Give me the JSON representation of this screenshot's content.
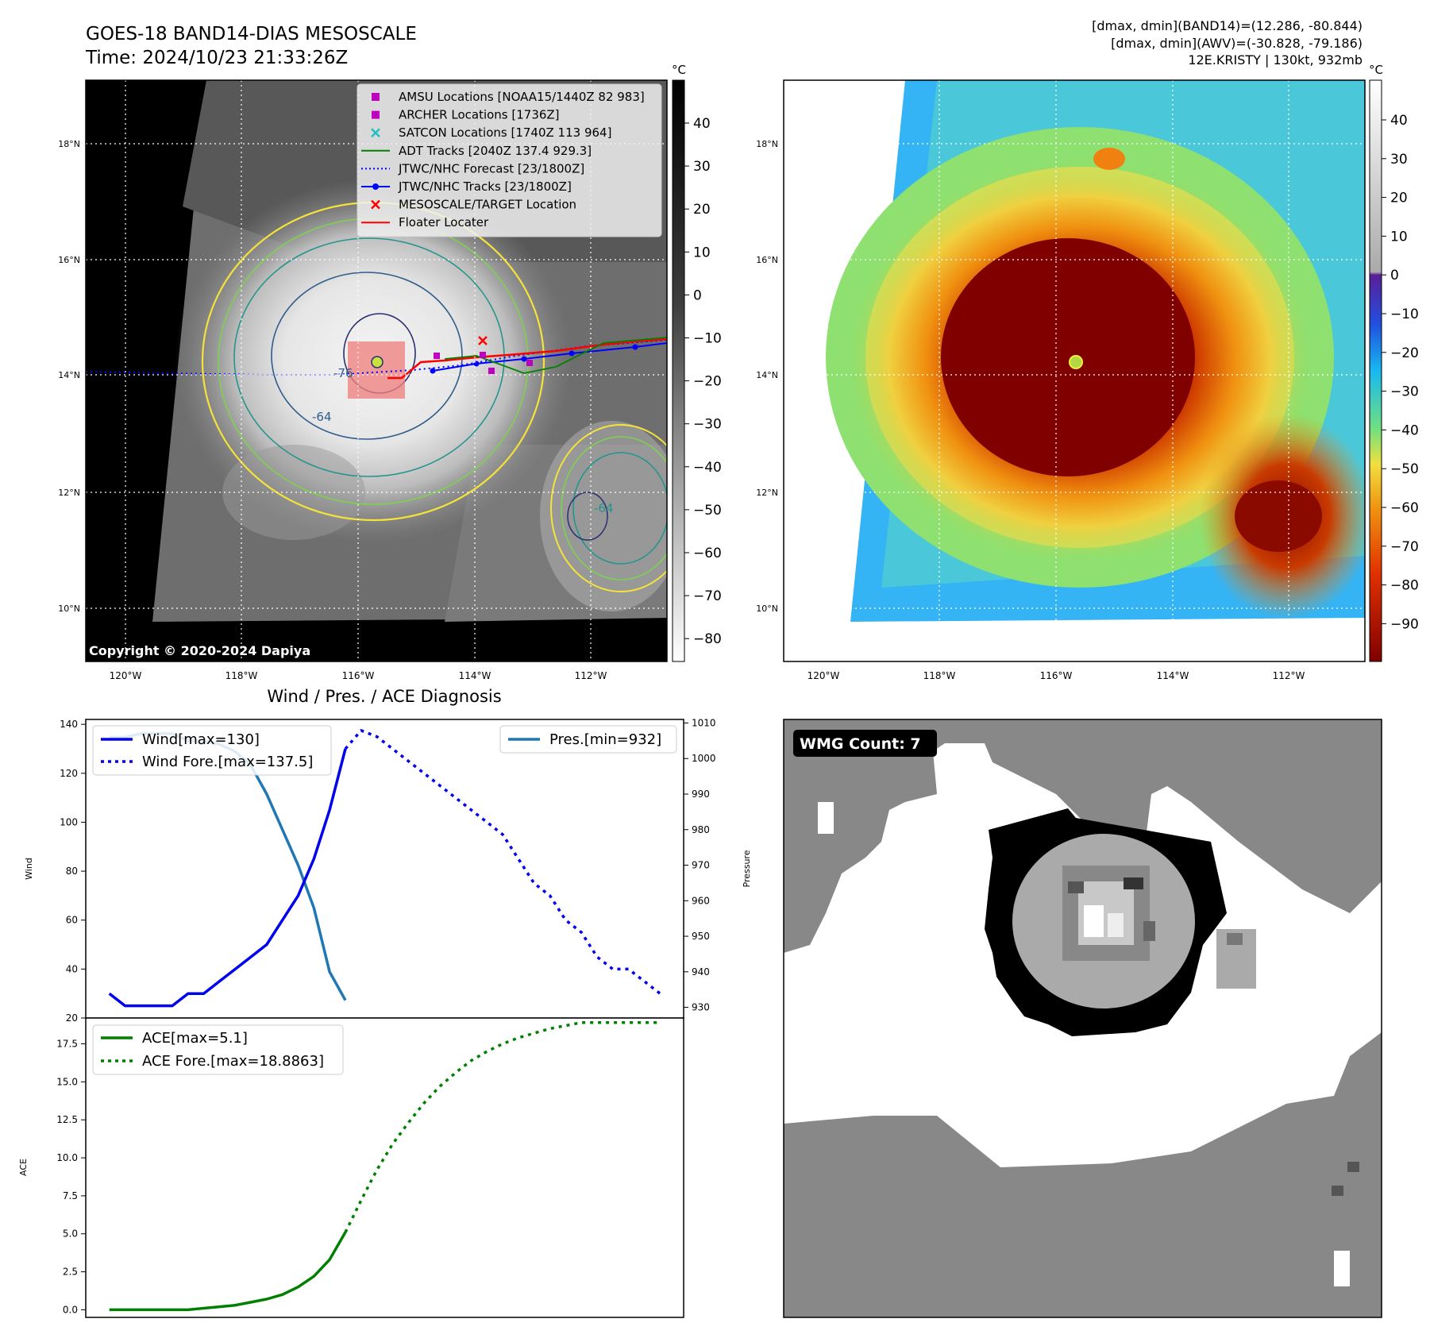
{
  "header": {
    "title_line1": "GOES-18 BAND14-DIAS MESOSCALE",
    "title_line2": "Time: 2024/10/23 21:33:26Z",
    "stats_line1": "[dmax, dmin](BAND14)=(12.286, -80.844)",
    "stats_line2": "[dmax, dmin](AWV)=(-30.828, -79.186)",
    "stats_line3": "12E.KRISTY | 130kt, 932mb"
  },
  "map_ir": {
    "lat_labels": [
      "18°N",
      "16°N",
      "14°N",
      "12°N",
      "10°N"
    ],
    "lon_labels": [
      "120°W",
      "118°W",
      "116°W",
      "114°W",
      "112°W"
    ],
    "copyright": "Copyright © 2020-2024 Dapiya",
    "contour_labels": [
      "-76",
      "-64",
      "-64"
    ],
    "legend": [
      {
        "label": "AMSU Locations [NOAA15/1440Z 82 983]",
        "color": "#c000c0",
        "marker": "square"
      },
      {
        "label": "ARCHER Locations [1736Z]",
        "color": "#c000c0",
        "marker": "square"
      },
      {
        "label": "SATCON Locations [1740Z 113 964]",
        "color": "#1fbfbf",
        "marker": "x"
      },
      {
        "label": "ADT Tracks [2040Z 137.4 929.3]",
        "color": "#008000",
        "marker": "line"
      },
      {
        "label": "JTWC/NHC Forecast [23/1800Z]",
        "color": "#0000ff",
        "marker": "dotted"
      },
      {
        "label": "JTWC/NHC Tracks [23/1800Z]",
        "color": "#0000ff",
        "marker": "line-dot"
      },
      {
        "label": "MESOSCALE/TARGET Location",
        "color": "#ff0000",
        "marker": "x"
      },
      {
        "label": "Floater Locater",
        "color": "#ff0000",
        "marker": "line"
      }
    ],
    "colorbar": {
      "unit": "°C",
      "ticks": [
        "40",
        "30",
        "20",
        "10",
        "0",
        "−10",
        "−20",
        "−30",
        "−40",
        "−50",
        "−60",
        "−70",
        "−80"
      ]
    }
  },
  "map_dias": {
    "lat_labels": [
      "18°N",
      "16°N",
      "14°N",
      "12°N",
      "10°N"
    ],
    "lon_labels": [
      "120°W",
      "118°W",
      "116°W",
      "114°W",
      "112°W"
    ],
    "colorbar": {
      "unit": "°C",
      "ticks": [
        "40",
        "30",
        "20",
        "10",
        "0",
        "−10",
        "−20",
        "−30",
        "−40",
        "−50",
        "−60",
        "−70",
        "−80",
        "−90"
      ]
    }
  },
  "wmg": {
    "badge": "WMG Count: 7"
  },
  "chart_data": [
    {
      "type": "line",
      "title": "Wind / Pres. / ACE Diagnosis",
      "ylabel": "Wind",
      "ylabel_right": "Pressure",
      "ylim": [
        20,
        142
      ],
      "ylim_right": [
        927,
        1011
      ],
      "y_ticks": [
        "140",
        "120",
        "100",
        "80",
        "60",
        "40",
        "20"
      ],
      "y_ticks_right": [
        "1010",
        "1000",
        "990",
        "980",
        "970",
        "960",
        "950",
        "940",
        "930"
      ],
      "series": [
        {
          "name": "Wind[max=130]",
          "color": "#0000ee",
          "style": "solid",
          "axis": "left",
          "x": [
            0,
            1,
            2,
            3,
            4,
            5,
            6,
            7,
            8,
            9,
            10,
            11,
            12,
            13,
            14,
            15
          ],
          "values": [
            30,
            25,
            25,
            25,
            25,
            30,
            30,
            35,
            40,
            45,
            50,
            60,
            70,
            85,
            105,
            130
          ]
        },
        {
          "name": "Wind Fore.[max=137.5]",
          "color": "#0000ee",
          "style": "dotted",
          "axis": "left",
          "x": [
            15,
            16,
            17,
            18,
            19,
            20,
            21,
            22,
            23,
            24,
            25,
            26,
            27,
            28,
            29,
            30,
            31,
            32,
            33,
            34,
            35
          ],
          "values": [
            130,
            137.5,
            135,
            130,
            125,
            120,
            115,
            110,
            105,
            100,
            95,
            85,
            75,
            70,
            60,
            55,
            45,
            40,
            40,
            35,
            30
          ]
        },
        {
          "name": "Pres.[min=932]",
          "color": "#1f77b4",
          "style": "solid",
          "axis": "right",
          "x": [
            0,
            1,
            2,
            3,
            4,
            5,
            6,
            7,
            8,
            9,
            10,
            11,
            12,
            13,
            14,
            15
          ],
          "values": [
            1006,
            1006,
            1007,
            1007,
            1007,
            1005,
            1005,
            1004,
            1002,
            998,
            990,
            980,
            970,
            958,
            940,
            932
          ]
        }
      ]
    },
    {
      "type": "line",
      "ylabel": "ACE",
      "ylim": [
        -0.5,
        19.2
      ],
      "y_ticks": [
        "17.5",
        "15.0",
        "12.5",
        "10.0",
        "7.5",
        "5.0",
        "2.5",
        "0.0"
      ],
      "series": [
        {
          "name": "ACE[max=5.1]",
          "color": "#008000",
          "style": "solid",
          "x": [
            0,
            1,
            2,
            3,
            4,
            5,
            6,
            7,
            8,
            9,
            10,
            11,
            12,
            13,
            14,
            15
          ],
          "values": [
            0,
            0,
            0,
            0,
            0,
            0,
            0.1,
            0.2,
            0.3,
            0.5,
            0.7,
            1.0,
            1.5,
            2.2,
            3.3,
            5.1
          ]
        },
        {
          "name": "ACE Fore.[max=18.8863]",
          "color": "#008000",
          "style": "dotted",
          "x": [
            15,
            16,
            17,
            18,
            19,
            20,
            21,
            22,
            23,
            24,
            25,
            26,
            27,
            28,
            29,
            30,
            31,
            32,
            33,
            34,
            35
          ],
          "values": [
            5.1,
            7.2,
            9.2,
            10.9,
            12.3,
            13.6,
            14.7,
            15.6,
            16.4,
            17.0,
            17.5,
            17.9,
            18.2,
            18.5,
            18.7,
            18.9,
            18.9,
            18.9,
            18.9,
            18.9,
            18.9
          ]
        }
      ]
    }
  ]
}
